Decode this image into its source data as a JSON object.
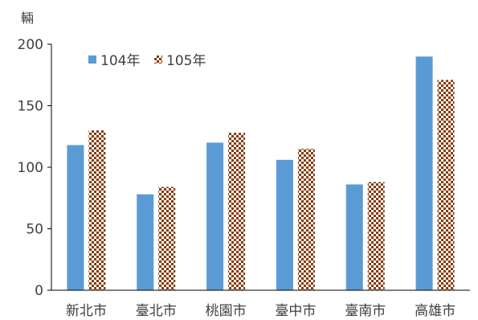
{
  "chart_data": {
    "type": "bar",
    "unit_label": "輛",
    "categories": [
      "新北市",
      "臺北市",
      "桃園市",
      "臺中市",
      "臺南市",
      "高雄市"
    ],
    "series": [
      {
        "name": "104年",
        "values": [
          118,
          78,
          120,
          106,
          86,
          190
        ],
        "color": "#5b9bd5",
        "fill": "solid"
      },
      {
        "name": "105年",
        "values": [
          130,
          84,
          128,
          115,
          88,
          171
        ],
        "color": "#843c0c",
        "fill": "checker"
      }
    ],
    "ylim": [
      0,
      200
    ],
    "yticks": [
      0,
      50,
      100,
      150,
      200
    ],
    "grid": false,
    "legend_position": "top-left"
  }
}
